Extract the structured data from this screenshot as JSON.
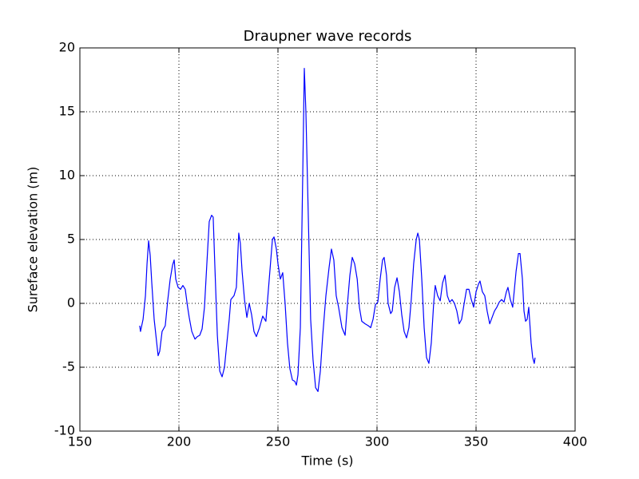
{
  "chart_data": {
    "type": "line",
    "title": "Draupner wave records",
    "x_label": "Time (s)",
    "y_label": "Sureface elevation (m)",
    "xlim": [
      150,
      400
    ],
    "xticks": [
      150,
      200,
      250,
      300,
      350,
      400
    ],
    "ylim": [
      -10,
      20
    ],
    "yticks": [
      -10,
      -5,
      0,
      5,
      10,
      15,
      20
    ],
    "grid": true,
    "x": [
      180.2,
      180.6,
      181.9,
      183.1,
      183.9,
      184.7,
      185.5,
      186.3,
      187.5,
      189.5,
      190.3,
      191.5,
      193.1,
      194.4,
      195.6,
      196.8,
      197.6,
      198.4,
      199.6,
      200.8,
      202,
      203.2,
      204.4,
      205.2,
      206.5,
      208.1,
      209.3,
      210.5,
      211.7,
      212.9,
      214.1,
      215.3,
      216.5,
      217.3,
      218.1,
      219.4,
      220.6,
      221.8,
      223,
      224.2,
      225.4,
      226.2,
      227.8,
      229,
      230.2,
      231,
      231.9,
      233.1,
      234.3,
      235.5,
      236.7,
      237.9,
      239.1,
      240.7,
      242.3,
      243.9,
      245.6,
      247.2,
      248,
      249.2,
      250,
      251.2,
      252.4,
      253.6,
      254.8,
      256,
      257.3,
      258.5,
      259.3,
      260.1,
      261.3,
      262.5,
      263.3,
      264.1,
      265.3,
      266.5,
      267.7,
      269,
      270.2,
      271.4,
      272.6,
      274.2,
      275.8,
      277,
      278.2,
      279.4,
      280.6,
      282.3,
      283.9,
      285.1,
      286.3,
      287.5,
      288.7,
      290,
      291.1,
      292.3,
      294,
      295.6,
      296.8,
      298,
      299.2,
      300.4,
      301.6,
      302.8,
      303.6,
      304.8,
      305.6,
      306.9,
      307.7,
      308.9,
      310.1,
      311.3,
      312.5,
      313.7,
      314.9,
      316.1,
      317.3,
      318.5,
      319.8,
      320.6,
      321.4,
      322.6,
      323.8,
      325,
      326.2,
      327.4,
      328.6,
      329.4,
      330.6,
      331.9,
      333.1,
      334.3,
      335.5,
      336.7,
      337.9,
      339.1,
      340.3,
      341.5,
      342.7,
      344,
      345.2,
      346.4,
      347.6,
      348.8,
      350,
      351.2,
      352,
      353.2,
      354.4,
      355.6,
      356.9,
      358.1,
      359.3,
      360.5,
      361.7,
      362.9,
      364.1,
      365.3,
      366.1,
      367.3,
      368.5,
      370.2,
      371.4,
      372.2,
      373.4,
      374.2,
      375,
      375.8,
      376.6,
      377.8,
      378.6,
      379.4,
      379.8
    ],
    "series": [
      {
        "name": "Draupner",
        "color": "#0000ff",
        "values": [
          -1.75,
          -2.2,
          -1.25,
          0.6,
          3.1,
          4.9,
          3.75,
          1.6,
          -1.25,
          -4.1,
          -3.75,
          -2.2,
          -1.75,
          0.3,
          1.9,
          3,
          3.4,
          1.9,
          1.25,
          1.1,
          1.4,
          1.1,
          -0.3,
          -1.1,
          -2.2,
          -2.8,
          -2.6,
          -2.5,
          -2,
          -0.3,
          3.1,
          6.4,
          6.9,
          6.75,
          3.1,
          -2.5,
          -5.3,
          -5.75,
          -5,
          -3.1,
          -1.25,
          0.3,
          0.6,
          1.25,
          5.5,
          4.7,
          2.5,
          0.3,
          -1.1,
          0,
          -0.9,
          -2.2,
          -2.6,
          -1.9,
          -1,
          -1.4,
          1.9,
          5,
          5.2,
          4.25,
          3.1,
          1.9,
          2.4,
          0,
          -3.1,
          -5.1,
          -6,
          -6.1,
          -6.4,
          -5.6,
          -1.9,
          10,
          18.4,
          15,
          6.9,
          -1.25,
          -4.4,
          -6.6,
          -6.9,
          -5.3,
          -2.5,
          0.6,
          2.8,
          4.25,
          3.4,
          0.6,
          -0.3,
          -1.9,
          -2.5,
          0,
          2.2,
          3.6,
          3.1,
          1.9,
          -0.3,
          -1.4,
          -1.6,
          -1.75,
          -1.9,
          -1.25,
          -0.1,
          0.1,
          1.9,
          3.4,
          3.6,
          2.2,
          0,
          -0.8,
          -0.6,
          1.25,
          2,
          0.9,
          -0.9,
          -2.2,
          -2.7,
          -1.9,
          0.3,
          3.1,
          5,
          5.5,
          5,
          1.9,
          -1.9,
          -4.25,
          -4.7,
          -3.1,
          0,
          1.4,
          0.6,
          0.2,
          1.6,
          2.2,
          0.6,
          0.1,
          0.3,
          0,
          -0.6,
          -1.6,
          -1.25,
          0,
          1.1,
          1.1,
          0.3,
          -0.3,
          0.9,
          1.5,
          1.75,
          0.9,
          0.6,
          -0.6,
          -1.6,
          -1.1,
          -0.6,
          -0.3,
          0.1,
          0.3,
          0.1,
          0.9,
          1.25,
          0.3,
          -0.3,
          2.5,
          3.9,
          3.9,
          1.9,
          -0.6,
          -1.4,
          -1.25,
          -0.3,
          -3.1,
          -4.25,
          -4.7,
          -4.25
        ]
      }
    ]
  }
}
